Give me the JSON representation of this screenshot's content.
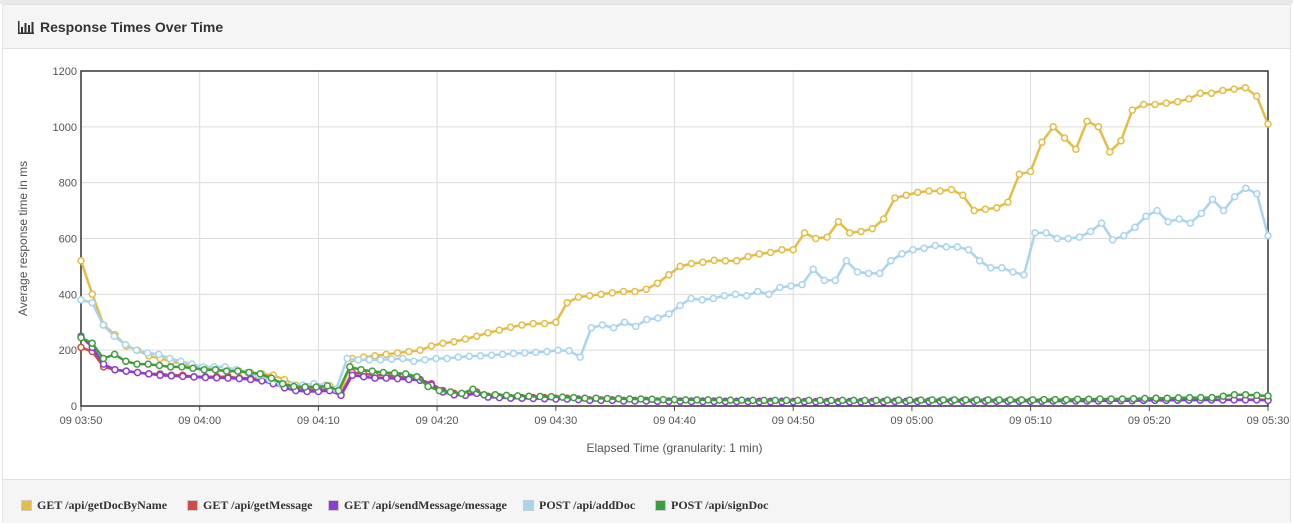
{
  "panel": {
    "title": "Response Times Over Time",
    "icon": "bar-chart-icon"
  },
  "chart_data": {
    "type": "line",
    "title": "",
    "xlabel": "Elapsed Time (granularity: 1 min)",
    "ylabel": "Average response time in ms",
    "ylim": [
      0,
      1200
    ],
    "yticks": [
      0,
      200,
      400,
      600,
      800,
      1000,
      1200
    ],
    "xticks": [
      "09 03:50",
      "09 04:00",
      "09 04:10",
      "09 04:20",
      "09 04:30",
      "09 04:40",
      "09 04:50",
      "09 05:00",
      "09 05:10",
      "09 05:20",
      "09 05:30"
    ],
    "x_start": "09 03:50",
    "x_end": "09 05:30",
    "grid": true,
    "legend_position": "bottom",
    "series": [
      {
        "name": "GET /api/getDocByName",
        "color": "#e5bd45",
        "values": [
          520,
          400,
          290,
          255,
          215,
          200,
          180,
          170,
          160,
          150,
          140,
          135,
          130,
          125,
          125,
          120,
          115,
          110,
          95,
          75,
          70,
          68,
          72,
          55,
          170,
          175,
          180,
          185,
          190,
          195,
          200,
          215,
          225,
          230,
          240,
          250,
          262,
          272,
          282,
          290,
          295,
          295,
          300,
          370,
          390,
          395,
          400,
          405,
          410,
          410,
          418,
          440,
          470,
          500,
          510,
          515,
          522,
          520,
          520,
          535,
          545,
          550,
          560,
          560,
          620,
          600,
          605,
          660,
          620,
          625,
          635,
          670,
          745,
          755,
          765,
          770,
          770,
          775,
          755,
          700,
          705,
          710,
          730,
          830,
          840,
          945,
          1000,
          960,
          920,
          1020,
          1000,
          910,
          950,
          1060,
          1080,
          1080,
          1085,
          1090,
          1100,
          1120,
          1120,
          1130,
          1135,
          1140,
          1110,
          1010
        ]
      },
      {
        "name": "GET /api/getMessage",
        "color": "#cf4b46",
        "values": [
          210,
          195,
          140,
          130,
          125,
          120,
          115,
          115,
          110,
          110,
          105,
          105,
          105,
          105,
          100,
          100,
          95,
          85,
          70,
          60,
          58,
          58,
          60,
          42,
          120,
          115,
          110,
          110,
          105,
          100,
          95,
          80,
          55,
          45,
          40,
          50,
          35,
          33,
          30,
          30,
          30,
          30,
          28,
          28,
          25,
          22,
          22,
          22,
          20,
          20,
          20,
          18,
          18,
          18,
          18,
          18,
          18,
          17,
          17,
          17,
          17,
          17,
          17,
          16,
          16,
          16,
          16,
          16,
          16,
          16,
          16,
          16,
          17,
          17,
          18,
          18,
          18,
          18,
          18,
          18,
          18,
          18,
          18,
          18,
          18,
          18,
          18,
          19,
          19,
          19,
          20,
          20,
          20,
          20,
          20,
          21,
          21,
          21,
          22,
          22,
          22,
          22,
          23,
          23,
          23,
          22
        ]
      },
      {
        "name": "GET /api/sendMessage/message",
        "color": "#8a3ed6",
        "values": [
          250,
          210,
          150,
          130,
          125,
          120,
          115,
          110,
          108,
          106,
          104,
          102,
          101,
          100,
          98,
          95,
          90,
          80,
          65,
          55,
          52,
          52,
          55,
          38,
          110,
          105,
          100,
          100,
          98,
          95,
          92,
          75,
          50,
          40,
          38,
          45,
          32,
          30,
          28,
          28,
          27,
          26,
          25,
          25,
          23,
          20,
          20,
          20,
          18,
          18,
          18,
          17,
          17,
          17,
          16,
          16,
          16,
          16,
          16,
          16,
          15,
          15,
          15,
          15,
          15,
          15,
          15,
          15,
          15,
          15,
          15,
          15,
          16,
          16,
          16,
          16,
          17,
          17,
          17,
          17,
          17,
          17,
          17,
          17,
          17,
          17,
          18,
          18,
          18,
          18,
          18,
          19,
          19,
          19,
          20,
          20,
          20,
          21,
          21,
          21,
          22,
          22,
          22,
          22,
          22,
          20
        ]
      },
      {
        "name": "POST /api/addDoc",
        "color": "#a8d4ee",
        "values": [
          380,
          370,
          290,
          250,
          220,
          200,
          190,
          185,
          170,
          160,
          150,
          140,
          140,
          140,
          130,
          120,
          110,
          95,
          80,
          75,
          75,
          80,
          75,
          60,
          170,
          165,
          165,
          165,
          168,
          170,
          160,
          165,
          170,
          170,
          175,
          178,
          180,
          182,
          185,
          188,
          190,
          192,
          195,
          200,
          198,
          175,
          280,
          290,
          280,
          300,
          285,
          310,
          315,
          330,
          360,
          385,
          380,
          385,
          395,
          400,
          395,
          410,
          400,
          425,
          430,
          435,
          490,
          450,
          450,
          520,
          480,
          475,
          475,
          520,
          545,
          560,
          565,
          575,
          570,
          570,
          560,
          520,
          495,
          495,
          480,
          470,
          620,
          620,
          600,
          600,
          605,
          625,
          655,
          595,
          610,
          640,
          680,
          700,
          660,
          670,
          655,
          690,
          740,
          700,
          750,
          780,
          760,
          610
        ]
      },
      {
        "name": "POST /api/signDoc",
        "color": "#3c9e3c",
        "values": [
          245,
          225,
          170,
          185,
          160,
          150,
          150,
          145,
          140,
          140,
          135,
          130,
          130,
          125,
          125,
          120,
          115,
          100,
          80,
          70,
          68,
          68,
          72,
          55,
          140,
          130,
          125,
          120,
          118,
          115,
          105,
          70,
          55,
          50,
          45,
          60,
          40,
          40,
          38,
          36,
          35,
          34,
          33,
          32,
          30,
          28,
          28,
          27,
          26,
          25,
          25,
          24,
          23,
          23,
          22,
          22,
          22,
          21,
          21,
          21,
          20,
          20,
          20,
          20,
          20,
          20,
          20,
          20,
          20,
          20,
          20,
          20,
          21,
          21,
          21,
          21,
          22,
          22,
          22,
          22,
          22,
          22,
          22,
          22,
          22,
          22,
          23,
          23,
          23,
          24,
          24,
          25,
          25,
          25,
          26,
          27,
          28,
          28,
          29,
          30,
          30,
          30,
          35,
          40,
          40,
          38,
          36
        ]
      }
    ]
  }
}
